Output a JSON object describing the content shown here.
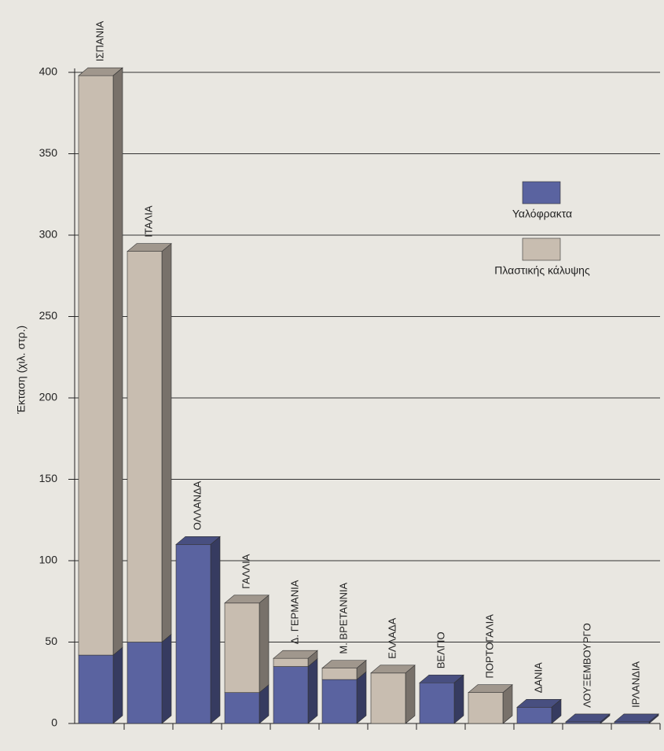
{
  "chart_data": {
    "type": "bar",
    "stacked": true,
    "y_label": "Έκταση (χιλ. στρ.)",
    "categories": [
      "ΙΣΠΑΝΙΑ",
      "ΙΤΑΛΙΑ",
      "ΟΛΛΑΝΔΑ",
      "ΓΑΛΛΙΑ",
      "Δ. ΓΕΡΜΑΝΙΑ",
      "Μ. ΒΡΕΤΑΝΝΙΑ",
      "ΕΛΛΑΔΑ",
      "ΒΕΛΓΙΟ",
      "ΠΟΡΤΟΓΑΛΙΑ",
      "ΔΑΝΙΑ",
      "ΛΟΥΞΕΜΒΟΥΡΓΟ",
      "ΙΡΛΑΝΔΙΑ"
    ],
    "series": [
      {
        "name": "Υαλόφρακτα",
        "color": "#5a63a0",
        "values": [
          42,
          50,
          110,
          19,
          35,
          27,
          0,
          25,
          0,
          10,
          1,
          1
        ]
      },
      {
        "name": "Πλαστικής κάλυψης",
        "color": "#c8bdb0",
        "values": [
          356,
          240,
          0,
          55,
          5,
          7,
          31,
          0,
          19,
          0,
          0,
          0
        ]
      }
    ],
    "ylim": [
      0,
      400
    ],
    "yticks": [
      0,
      50,
      100,
      150,
      200,
      250,
      300,
      350,
      400
    ],
    "grid": true
  }
}
